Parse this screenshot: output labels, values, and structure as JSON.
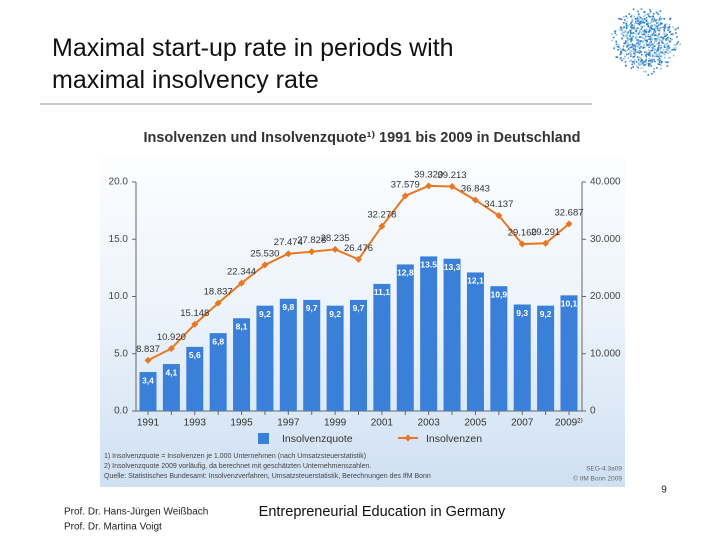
{
  "slide": {
    "title": "Maximal start-up rate in periods with maximal insolvency rate",
    "footer_authors": [
      "Prof. Dr. Hans-Jürgen Weißbach",
      "Prof. Dr. Martina Voigt"
    ],
    "footer_center": "Entrepreneurial Education in Germany",
    "page_number": "9"
  },
  "chart_data": {
    "type": "bar_line",
    "title": "Insolvenzen und Insolvenzquote¹⁾ 1991 bis 2009 in Deutschland",
    "categories": [
      "1991",
      null,
      "1993",
      null,
      "1995",
      null,
      "1997",
      null,
      "1999",
      null,
      "2001",
      null,
      "2003",
      null,
      "2005",
      null,
      "2007",
      null,
      "2009²⁾"
    ],
    "series": [
      {
        "name": "Insolvenzquote",
        "color": "#3a7fd8",
        "type": "bar",
        "values": [
          3.4,
          4.1,
          5.6,
          6.8,
          8.1,
          9.2,
          9.8,
          9.7,
          9.2,
          9.7,
          11.1,
          12.8,
          13.5,
          13.3,
          12.1,
          10.9,
          9.3,
          9.2,
          10.1
        ],
        "value_labels": [
          "3,4",
          "4,1",
          "5,6",
          "6,8",
          "8,1",
          "9,2",
          "9,8",
          "9,7",
          "9,2",
          "9,7",
          "11,1",
          "12,8",
          "13.5",
          "13,3",
          "12,1",
          "10,9",
          "9,3",
          "9,2",
          "10,1"
        ]
      },
      {
        "name": "Insolvenzen",
        "color": "#e87722",
        "type": "line",
        "axis": "y2",
        "values": [
          8837,
          10920,
          15148,
          18837,
          22344,
          25530,
          27474,
          27828,
          28235,
          26476,
          32278,
          37579,
          39320,
          39213,
          36843,
          34137,
          29160,
          29291,
          32687
        ],
        "value_labels": [
          "8.837",
          "10.920",
          "15.148",
          "18.837",
          "22.344",
          "25.530",
          "27.474",
          "27.828",
          "28.235",
          "26.476",
          "32.278",
          "37.579",
          "39.320",
          "39.213",
          "36.843",
          "34.137",
          "29.160",
          "29.291",
          "32.687"
        ]
      }
    ],
    "ylim": [
      0,
      20
    ],
    "yticks": [
      {
        "value": 0,
        "label": "0.0"
      },
      {
        "value": 5,
        "label": "5.0"
      },
      {
        "value": 10,
        "label": "10.0"
      },
      {
        "value": 15,
        "label": "15.0"
      },
      {
        "value": 20,
        "label": "20.0"
      }
    ],
    "y2lim": [
      0,
      40000
    ],
    "y2ticks": [
      0,
      {
        "value": 10000,
        "label": "10.000"
      },
      {
        "value": 20000,
        "label": "20.000"
      },
      {
        "value": 30000,
        "label": "30.000"
      },
      {
        "value": 40000,
        "label": "40.000"
      }
    ],
    "footnotes": [
      "1) Insolvenzquote = Insolvenzen je 1.000 Unternehmen (nach Umsatzsteuerstatistik)",
      "2) Insolvenzquote 2009 vorläufig, da berechnet mit geschätzten Unternehmenszahlen.",
      "Quelle: Statistisches Bundesamt: Insolvenzverfahren, Umsatzsteuerstatistik, Berechnungen des IfM Bonn"
    ],
    "source_codes": [
      "SEG-4.3a09",
      "© IfM Bonn 2009"
    ]
  }
}
